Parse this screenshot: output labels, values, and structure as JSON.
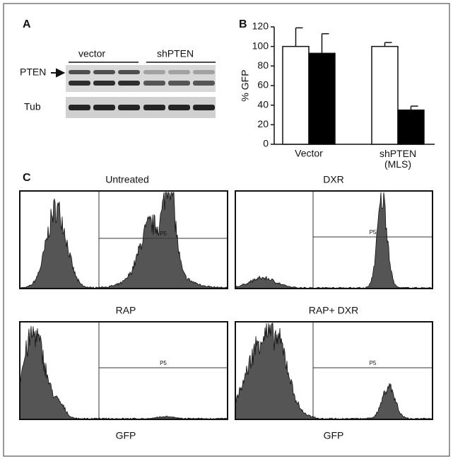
{
  "panel_a": {
    "label": "A",
    "groups": [
      "vector",
      "shPTEN"
    ],
    "rows": [
      "PTEN",
      "Tub"
    ]
  },
  "chart_data": {
    "type": "bar",
    "label": "B",
    "y_label": "% GFP",
    "categories": [
      "Vector",
      "shPTEN (MLS)"
    ],
    "series": [
      {
        "color": "#ffffff",
        "values": [
          100,
          100
        ],
        "errors": [
          19,
          4
        ]
      },
      {
        "color": "#000000",
        "values": [
          93,
          35
        ],
        "errors": [
          20,
          4
        ]
      }
    ],
    "ylim": [
      0,
      120
    ],
    "yticks": [
      0,
      20,
      40,
      60,
      80,
      100,
      120
    ]
  },
  "panel_c": {
    "label": "C",
    "plots": [
      {
        "title": "Untreated",
        "gate": "P5"
      },
      {
        "title": "DXR",
        "gate": "P5"
      },
      {
        "title": "RAP",
        "gate": "P5",
        "x_label": "GFP"
      },
      {
        "title": "RAP+ DXR",
        "gate": "P5",
        "x_label": "GFP"
      }
    ]
  }
}
